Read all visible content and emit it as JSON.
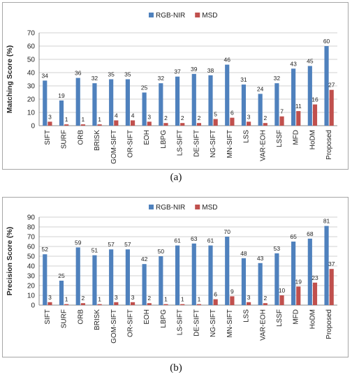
{
  "figure": {
    "caption_a": "(a)",
    "caption_b": "(b)"
  },
  "chart_data": [
    {
      "type": "bar",
      "title": "",
      "xlabel": "",
      "ylabel": "Matching Score (%)",
      "ylim": [
        0,
        70
      ],
      "yticks": [
        0,
        10,
        20,
        30,
        40,
        50,
        60,
        70
      ],
      "grid": true,
      "legend": "top-right",
      "categories": [
        "SIFT",
        "SURF",
        "ORB",
        "BRISK",
        "GOM-SIFT",
        "OR-SIFT",
        "EOH",
        "LBPG",
        "LS-SIFT",
        "DE-SIFT",
        "NG-SIFT",
        "MN-SIFT",
        "LSS",
        "VAR-EOH",
        "LSSF",
        "MFD",
        "HoDM",
        "Proposed"
      ],
      "series": [
        {
          "name": "RGB-NIR",
          "color": "#4f81bd",
          "values": [
            34,
            19,
            36,
            32,
            35,
            35,
            25,
            32,
            37,
            39,
            38,
            46,
            31,
            24,
            32,
            43,
            45,
            60
          ]
        },
        {
          "name": "MSD",
          "color": "#c0504d",
          "values": [
            3,
            1,
            1,
            1,
            4,
            4,
            3,
            2,
            2,
            2,
            5,
            6,
            3,
            2,
            7,
            11,
            16,
            27
          ]
        }
      ]
    },
    {
      "type": "bar",
      "title": "",
      "xlabel": "",
      "ylabel": "Precision Score (%)",
      "ylim": [
        0,
        90
      ],
      "yticks": [
        0,
        10,
        20,
        30,
        40,
        50,
        60,
        70,
        80,
        90
      ],
      "grid": true,
      "legend": "top-right",
      "categories": [
        "SIFT",
        "SURF",
        "ORB",
        "BRISK",
        "GOM-SIFT",
        "OR-SIFT",
        "EOH",
        "LBPG",
        "LS-SIFT",
        "DE-SIFT",
        "NG-SIFT",
        "MN-SIFT",
        "LSS",
        "VAR-EOH",
        "LSSF",
        "MFD",
        "HoDM",
        "Proposed"
      ],
      "series": [
        {
          "name": "RGB-NIR",
          "color": "#4f81bd",
          "values": [
            52,
            25,
            59,
            51,
            57,
            57,
            42,
            50,
            61,
            63,
            61,
            70,
            48,
            43,
            53,
            65,
            68,
            81
          ]
        },
        {
          "name": "MSD",
          "color": "#c0504d",
          "values": [
            3,
            1,
            2,
            1,
            3,
            3,
            2,
            1,
            1,
            1,
            6,
            9,
            3,
            2,
            10,
            19,
            23,
            37
          ]
        }
      ]
    }
  ]
}
